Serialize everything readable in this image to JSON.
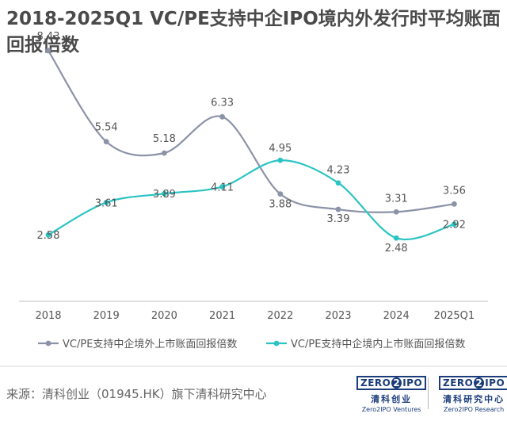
{
  "title": "2018-2025Q1 VC/PE支持中企IPO境内外发行时平均账面回报倍数",
  "source": "来源：清科创业（01945.HK）旗下清科研究中心",
  "logos": [
    {
      "mark_left": "ZERO",
      "mark_mid": "2",
      "mark_right": "IPO",
      "cn": "清科创业",
      "en": "Zero2IPO Ventures"
    },
    {
      "mark_left": "ZERO",
      "mark_mid": "2",
      "mark_right": "IPO",
      "cn": "清科研究中心",
      "en": "Zero2IPO Research"
    }
  ],
  "colors": {
    "overseas": "#8c93a8",
    "domestic": "#2cc3c3",
    "axis": "#bfbfbf",
    "label": "#555555"
  },
  "chart_data": {
    "type": "line",
    "categories": [
      "2018",
      "2019",
      "2020",
      "2021",
      "2022",
      "2023",
      "2024",
      "2025Q1"
    ],
    "series": [
      {
        "name": "VC/PE支持中企境外上市账面回报倍数",
        "values": [
          8.43,
          5.54,
          5.18,
          6.33,
          3.88,
          3.39,
          3.31,
          3.56
        ],
        "labels": [
          "8.43",
          "5.54",
          "5.18",
          "6.33",
          "3.88",
          "3.39",
          "3.31",
          "3.56"
        ]
      },
      {
        "name": "VC/PE支持中企境内上市账面回报倍数",
        "values": [
          2.58,
          3.61,
          3.89,
          4.11,
          4.95,
          4.23,
          2.48,
          2.92
        ],
        "labels": [
          "2.58",
          "3.61",
          "3.89",
          "4.11",
          "4.95",
          "4.23",
          "2.48",
          "2.92"
        ]
      }
    ],
    "smooth": true,
    "grid": false,
    "legend_position": "bottom",
    "ylim": [
      0,
      9
    ]
  }
}
